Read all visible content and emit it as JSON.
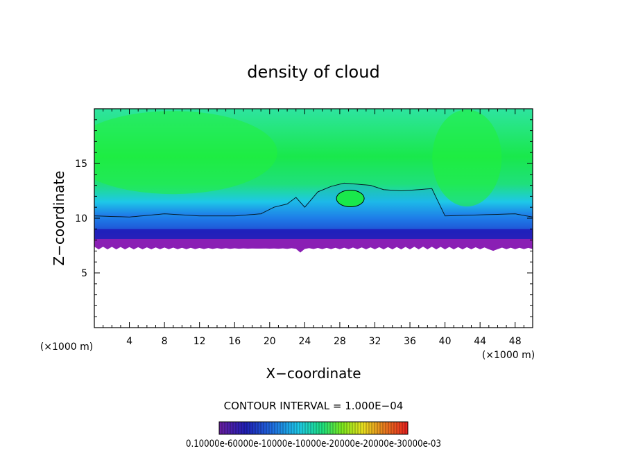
{
  "chart_data": {
    "type": "heatmap",
    "title": "density of cloud",
    "xlabel": "X−coordinate",
    "ylabel": "Z−coordinate",
    "x_unit_left": "(×1000 m)",
    "x_unit_right": "(×1000 m)",
    "xlim": [
      0,
      50
    ],
    "ylim": [
      0,
      20
    ],
    "xticks": [
      4,
      8,
      12,
      16,
      20,
      24,
      28,
      32,
      36,
      40,
      44,
      48
    ],
    "xtick_labels": [
      "4",
      "8",
      "12",
      "16",
      "20",
      "24",
      "28",
      "32",
      "36",
      "40",
      "44",
      "48"
    ],
    "yticks": [
      5,
      10,
      15
    ],
    "ytick_labels": [
      "5",
      "10",
      "15"
    ],
    "contour_interval_label": "CONTOUR INTERVAL = 1.000E−04",
    "colorbar_labels_text": "0.10000e-60000e-10000e-10000e-20000e-20000e-30000e-03",
    "cloud_base_z": 7.5,
    "cloud_top_profile": {
      "x": [
        0,
        4,
        8,
        12,
        16,
        19,
        20.5,
        22,
        23,
        24,
        25.5,
        27,
        28.5,
        30,
        31.5,
        33,
        35,
        37,
        38.5,
        40,
        44,
        48,
        50
      ],
      "z": [
        10.2,
        10.1,
        10.4,
        10.2,
        10.2,
        10.4,
        11.0,
        11.3,
        11.9,
        11.0,
        12.4,
        12.9,
        13.2,
        13.1,
        13.0,
        12.6,
        12.5,
        12.6,
        12.7,
        10.2,
        10.3,
        10.4,
        10.1
      ]
    },
    "colors": {
      "background_green": "#19e84b",
      "cloud_cyan": "#1ec8e8",
      "cloud_blue": "#1f3cdc",
      "cloud_base_purple": "#8a1fb4",
      "frame": "#000000"
    }
  }
}
